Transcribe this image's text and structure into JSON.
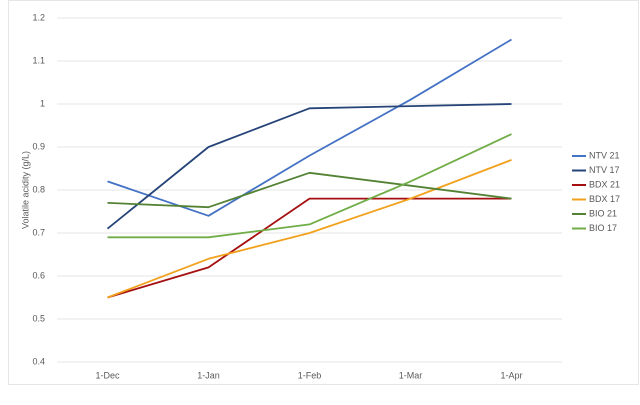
{
  "chart_data": {
    "type": "line",
    "y_label": "Volatile acidity (g/L)",
    "categories": [
      "1-Dec",
      "1-Jan",
      "1-Feb",
      "1-Mar",
      "1-Apr"
    ],
    "series": [
      {
        "name": "NTV 21",
        "color": "#4472c4",
        "values": [
          0.82,
          0.74,
          0.88,
          1.01,
          1.15
        ]
      },
      {
        "name": "NTV 17",
        "color": "#264478",
        "values": [
          0.71,
          0.9,
          0.99,
          0.995,
          1.0
        ]
      },
      {
        "name": "BDX 21",
        "color": "#a50f0f",
        "values": [
          0.55,
          0.62,
          0.78,
          0.78,
          0.78
        ]
      },
      {
        "name": "BDX 17",
        "color": "#f2a11e",
        "values": [
          0.55,
          0.64,
          0.7,
          0.78,
          0.87
        ]
      },
      {
        "name": "BIO 21",
        "color": "#548235",
        "values": [
          0.77,
          0.76,
          0.84,
          0.81,
          0.78
        ]
      },
      {
        "name": "BIO 17",
        "color": "#70ad47",
        "values": [
          0.69,
          0.69,
          0.72,
          0.82,
          0.93
        ]
      }
    ],
    "ylim": [
      0.4,
      1.2
    ],
    "yticks": [
      0.4,
      0.5,
      0.6,
      0.7,
      0.8,
      0.9,
      1,
      1.1,
      1.2
    ],
    "grid": true,
    "legend": "right"
  }
}
